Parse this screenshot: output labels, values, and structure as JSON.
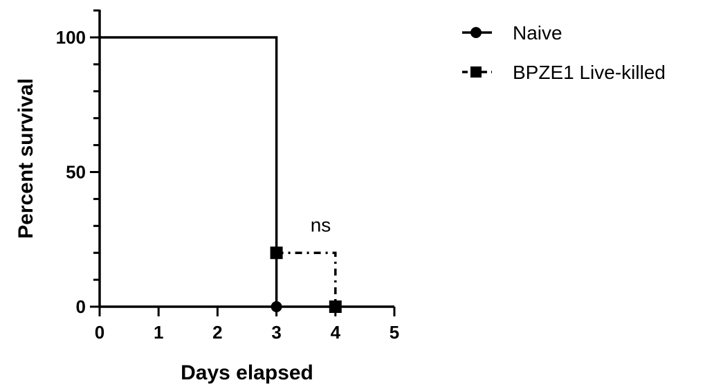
{
  "chart_data": {
    "type": "line",
    "subtype": "survival-step",
    "xlabel": "Days elapsed",
    "ylabel": "Percent survival",
    "xlim": [
      0,
      5
    ],
    "ylim": [
      0,
      100
    ],
    "xticks": [
      0,
      1,
      2,
      3,
      4,
      5
    ],
    "yticks": [
      0,
      50,
      100
    ],
    "grid": false,
    "legend_position": "top-right",
    "annotation": {
      "text": "ns",
      "x": 3.75,
      "y": 30
    },
    "series": [
      {
        "name": "Naive",
        "marker": "circle",
        "line_style": "solid",
        "color": "#000000",
        "steps": [
          [
            0,
            100
          ],
          [
            3,
            100
          ],
          [
            3,
            0
          ]
        ],
        "points": [
          [
            3,
            0
          ]
        ]
      },
      {
        "name": "BPZE1 Live-killed",
        "marker": "square",
        "line_style": "dash-dot",
        "color": "#000000",
        "steps": [
          [
            3,
            20
          ],
          [
            4,
            20
          ],
          [
            4,
            0
          ]
        ],
        "points": [
          [
            3,
            20
          ],
          [
            4,
            0
          ]
        ]
      }
    ]
  }
}
